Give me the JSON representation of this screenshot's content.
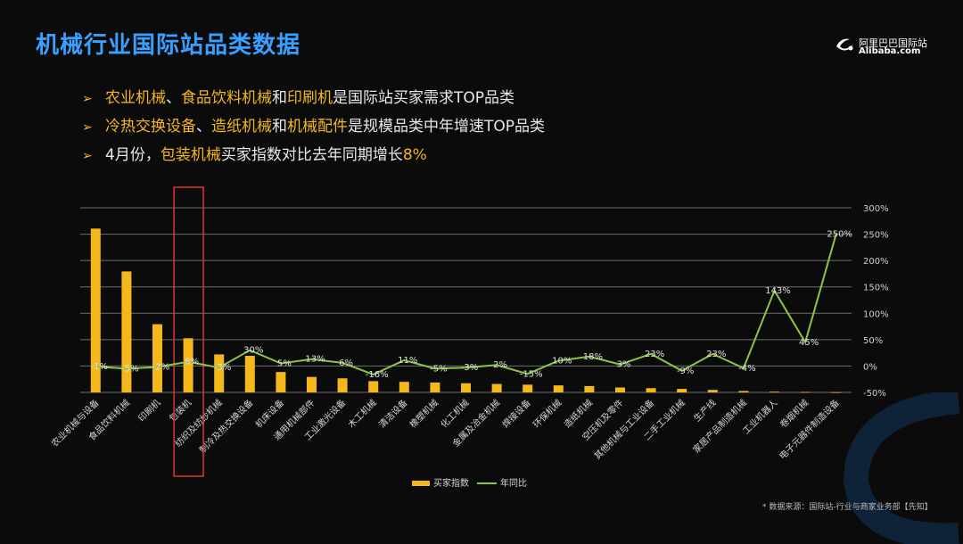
{
  "header": {
    "title": "机械行业国际站品类数据"
  },
  "logo": {
    "cn": "阿里巴巴国际站",
    "en": "Alibaba.com"
  },
  "bullets": [
    {
      "parts": [
        {
          "text": "农业机械",
          "hl": true
        },
        {
          "text": "、",
          "hl": false
        },
        {
          "text": "食品饮料机械",
          "hl": true
        },
        {
          "text": "和",
          "hl": false
        },
        {
          "text": "印刷机",
          "hl": true
        },
        {
          "text": "是国际站买家需求TOP品类",
          "hl": false
        }
      ]
    },
    {
      "parts": [
        {
          "text": "冷热交换设备",
          "hl": true
        },
        {
          "text": "、",
          "hl": false
        },
        {
          "text": "造纸机械",
          "hl": true
        },
        {
          "text": "和",
          "hl": false
        },
        {
          "text": "机械配件",
          "hl": true
        },
        {
          "text": "是规模品类中年增速TOP品类",
          "hl": false
        }
      ]
    },
    {
      "parts": [
        {
          "text": "4月份，",
          "hl": false
        },
        {
          "text": "包装机械",
          "hl": true
        },
        {
          "text": "买家指数对比去年同期增长",
          "hl": false
        },
        {
          "text": "8%",
          "hl": true
        }
      ]
    }
  ],
  "colors": {
    "bar": "#f5b81c",
    "line": "#8cc63f",
    "highlight_box": "#e0342c",
    "title": "#3aa0ff"
  },
  "chart_data": {
    "type": "bar+line",
    "categories": [
      "农业机械与设备",
      "食品饮料机械",
      "印刷机",
      "包装机",
      "纺织及纺纱机械",
      "制冷及热交换设备",
      "机床设备",
      "通用机械部件",
      "工业激光设备",
      "木工机械",
      "清洁设备",
      "橡塑机械",
      "化工机械",
      "金属及冶金机械",
      "焊接设备",
      "环保机械",
      "造纸机械",
      "空压机及零件",
      "其他机械与工业设备",
      "二手工业机械",
      "生产线",
      "家居产品制造机械",
      "工业机器人",
      "卷烟机械",
      "电子元器件制造设备"
    ],
    "series": [
      {
        "name": "买家指数",
        "type": "bar",
        "axis": "left",
        "values": [
          233,
          172,
          97,
          77,
          54,
          52,
          29,
          22,
          20,
          16,
          15,
          14,
          13,
          12,
          11,
          10,
          9,
          7,
          6,
          5,
          3.5,
          2,
          1,
          0.6,
          0.3
        ]
      },
      {
        "name": "年同比",
        "type": "line",
        "axis": "right",
        "values": [
          -1,
          -5,
          -2,
          8,
          -3,
          30,
          5,
          13,
          6,
          -16,
          11,
          -5,
          -3,
          2,
          -15,
          10,
          18,
          3,
          23,
          -9,
          23,
          -4,
          143,
          45,
          250
        ]
      }
    ],
    "line_labels": [
      "-1%",
      "-5%",
      "-2%",
      "8%",
      "-3%",
      "30%",
      "5%",
      "13%",
      "6%",
      "-16%",
      "11%",
      "-5%",
      "-3%",
      "2%",
      "-15%",
      "10%",
      "18%",
      "3%",
      "23%",
      "-9%",
      "23%",
      "-4%",
      "143%",
      "45%",
      "250%"
    ],
    "left_ylim": [
      0,
      260
    ],
    "right_axis": {
      "ticks": [
        "300%",
        "250%",
        "200%",
        "150%",
        "100%",
        "50%",
        "0%",
        "-50%"
      ],
      "range": [
        -50,
        300
      ]
    },
    "highlight_category": "包装机",
    "legend": [
      {
        "label": "买家指数"
      },
      {
        "label": "年同比"
      }
    ],
    "legend_position": "bottom"
  },
  "source": "* 数据来源：国际站-行业与商家业务部【先知】"
}
